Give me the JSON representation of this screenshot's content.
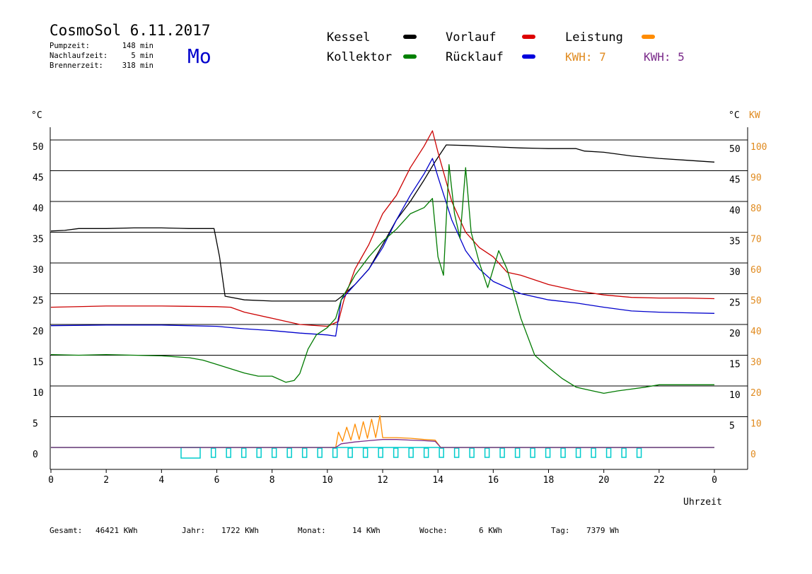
{
  "header": {
    "title": "CosmoSol 6.11.2017",
    "day": "Mo",
    "stats": [
      {
        "label": "Pumpzeit:",
        "value": "148 min"
      },
      {
        "label": "Nachlaufzeit:",
        "value": "5 min"
      },
      {
        "label": "Brennerzeit:",
        "value": "318 min"
      }
    ]
  },
  "legend": [
    {
      "label": "Kessel",
      "color": "#000000",
      "text_color": "#000000"
    },
    {
      "label": "Vorlauf",
      "color": "#dd0000",
      "text_color": "#000000"
    },
    {
      "label": "Leistung",
      "color": "#ff8c00",
      "text_color": "#000000"
    },
    {
      "label": "Kollektor",
      "color": "#008000",
      "text_color": "#000000"
    },
    {
      "label": "Rücklauf",
      "color": "#0000dd",
      "text_color": "#000000"
    }
  ],
  "kwh": [
    {
      "label": "KWH: 7",
      "color": "#e08a1e"
    },
    {
      "label": "KWH: 5",
      "color": "#7a2a8a"
    }
  ],
  "footer": [
    {
      "label": "Gesamt:",
      "value": "46421 KWh"
    },
    {
      "label": "Jahr:",
      "value": "1722 KWh"
    },
    {
      "label": "Monat:",
      "value": "14 KWh"
    },
    {
      "label": "Woche:",
      "value": "6 KWh"
    },
    {
      "label": "Tag:",
      "value": "7379 Wh"
    }
  ],
  "chart_data": {
    "type": "line",
    "xlabel": "Uhrzeit",
    "x_ticks": [
      "0",
      "2",
      "4",
      "6",
      "8",
      "10",
      "12",
      "14",
      "16",
      "18",
      "20",
      "22",
      "0"
    ],
    "x_range": [
      0,
      24
    ],
    "y_left_unit": "°C",
    "y_left_ticks": [
      "0",
      "5",
      "10",
      "15",
      "20",
      "25",
      "30",
      "35",
      "40",
      "45",
      "50"
    ],
    "y_right_unit": "°C",
    "y_right_ticks": [
      "5",
      "10",
      "15",
      "20",
      "25",
      "30",
      "35",
      "40",
      "45",
      "50"
    ],
    "y_kw_unit": "KW",
    "y_kw_ticks": [
      "0",
      "10",
      "20",
      "30",
      "40",
      "50",
      "60",
      "70",
      "80",
      "90",
      "100"
    ],
    "ylim": [
      0,
      50
    ],
    "grid": "horizontal",
    "series": [
      {
        "name": "Kessel",
        "color": "#000000",
        "x": [
          0,
          0.5,
          1,
          2,
          3,
          4,
          5,
          5.9,
          6.1,
          6.3,
          7,
          8,
          9,
          10,
          10.3,
          10.5,
          11,
          11.5,
          12,
          12.5,
          13,
          13.5,
          13.9,
          14.3,
          15,
          16,
          17,
          18,
          19,
          19.3,
          20,
          21,
          22,
          23,
          24
        ],
        "values": [
          35.2,
          35.3,
          35.6,
          35.6,
          35.7,
          35.7,
          35.6,
          35.6,
          31,
          24.6,
          24,
          23.8,
          23.8,
          23.8,
          23.8,
          24.5,
          26.5,
          29,
          33,
          37,
          40,
          43.5,
          46.5,
          49.2,
          49.1,
          48.9,
          48.7,
          48.6,
          48.6,
          48.2,
          48,
          47.4,
          47,
          46.7,
          46.4
        ]
      },
      {
        "name": "Vorlauf",
        "color": "#cc0000",
        "x": [
          0,
          2,
          4,
          6,
          6.5,
          7,
          8,
          9,
          10,
          10.4,
          10.6,
          11,
          11.5,
          12,
          12.5,
          13,
          13.5,
          13.8,
          14,
          14.5,
          15,
          15.5,
          16,
          16.5,
          17,
          18,
          19,
          20,
          21,
          22,
          23,
          24
        ],
        "values": [
          22.8,
          23,
          23,
          22.9,
          22.8,
          22,
          21,
          20,
          19.7,
          20.5,
          24,
          29,
          33,
          38,
          41,
          45.5,
          49,
          51.5,
          48,
          40,
          35,
          32.5,
          31,
          28.5,
          28,
          26.5,
          25.5,
          24.8,
          24.4,
          24.3,
          24.3,
          24.2
        ]
      },
      {
        "name": "Rücklauf",
        "color": "#0000cc",
        "x": [
          0,
          2,
          4,
          6,
          7,
          8,
          9,
          10,
          10.3,
          10.5,
          11,
          11.5,
          12,
          12.5,
          13,
          13.5,
          13.8,
          14,
          14.5,
          15,
          15.5,
          16,
          17,
          18,
          19,
          20,
          21,
          22,
          23,
          24
        ],
        "values": [
          19.8,
          19.9,
          19.9,
          19.7,
          19.3,
          19,
          18.6,
          18.3,
          18.1,
          24,
          26.5,
          29,
          32.5,
          37,
          41,
          44.5,
          47,
          44,
          37,
          32,
          29,
          27,
          25,
          24,
          23.5,
          22.8,
          22.2,
          22,
          21.9,
          21.8
        ]
      },
      {
        "name": "Kollektor",
        "color": "#007a00",
        "x": [
          0,
          1,
          2,
          3,
          4,
          5,
          5.5,
          6,
          6.5,
          7,
          7.5,
          8,
          8.5,
          8.8,
          9,
          9.3,
          9.6,
          10,
          10.3,
          10.5,
          11,
          11.5,
          12,
          12.5,
          13,
          13.5,
          13.8,
          14,
          14.2,
          14.4,
          14.6,
          14.8,
          15,
          15.2,
          15.5,
          15.8,
          16,
          16.2,
          16.5,
          17,
          17.5,
          18,
          18.5,
          19,
          19.5,
          20,
          20.5,
          21,
          21.5,
          22,
          23,
          24
        ],
        "values": [
          15.1,
          15,
          15.1,
          15,
          14.9,
          14.6,
          14.2,
          13.5,
          12.8,
          12.1,
          11.6,
          11.6,
          10.6,
          10.9,
          12,
          16,
          18.3,
          19.5,
          21,
          24,
          28,
          31,
          33.5,
          35.5,
          38,
          39,
          40.5,
          31,
          28,
          46,
          38,
          34,
          45.5,
          35,
          30,
          26,
          29,
          32,
          29,
          21,
          15,
          13,
          11.2,
          9.8,
          9.3,
          8.8,
          9.2,
          9.5,
          9.8,
          10.2,
          10.2,
          10.2
        ]
      },
      {
        "name": "Leistung",
        "color": "#ff8c00",
        "x": [
          0,
          10.3,
          10.4,
          10.55,
          10.7,
          10.85,
          11,
          11.15,
          11.3,
          11.45,
          11.6,
          11.75,
          11.9,
          12,
          12.5,
          13,
          13.5,
          13.9,
          14.1,
          24
        ],
        "values": [
          0,
          0,
          2.5,
          1,
          3.3,
          1.2,
          3.8,
          1.3,
          4.2,
          1.5,
          4.6,
          1.6,
          5.2,
          1.6,
          1.6,
          1.5,
          1.3,
          1.2,
          0,
          0
        ]
      },
      {
        "name": "KWH",
        "color": "#7a2a8a",
        "x": [
          0,
          10.3,
          10.5,
          11,
          11.5,
          12,
          12.5,
          13,
          13.5,
          13.9,
          14.1,
          24
        ],
        "values": [
          0,
          0,
          0.6,
          0.9,
          1.1,
          1.3,
          1.3,
          1.2,
          1.1,
          1,
          0,
          0
        ]
      }
    ]
  }
}
